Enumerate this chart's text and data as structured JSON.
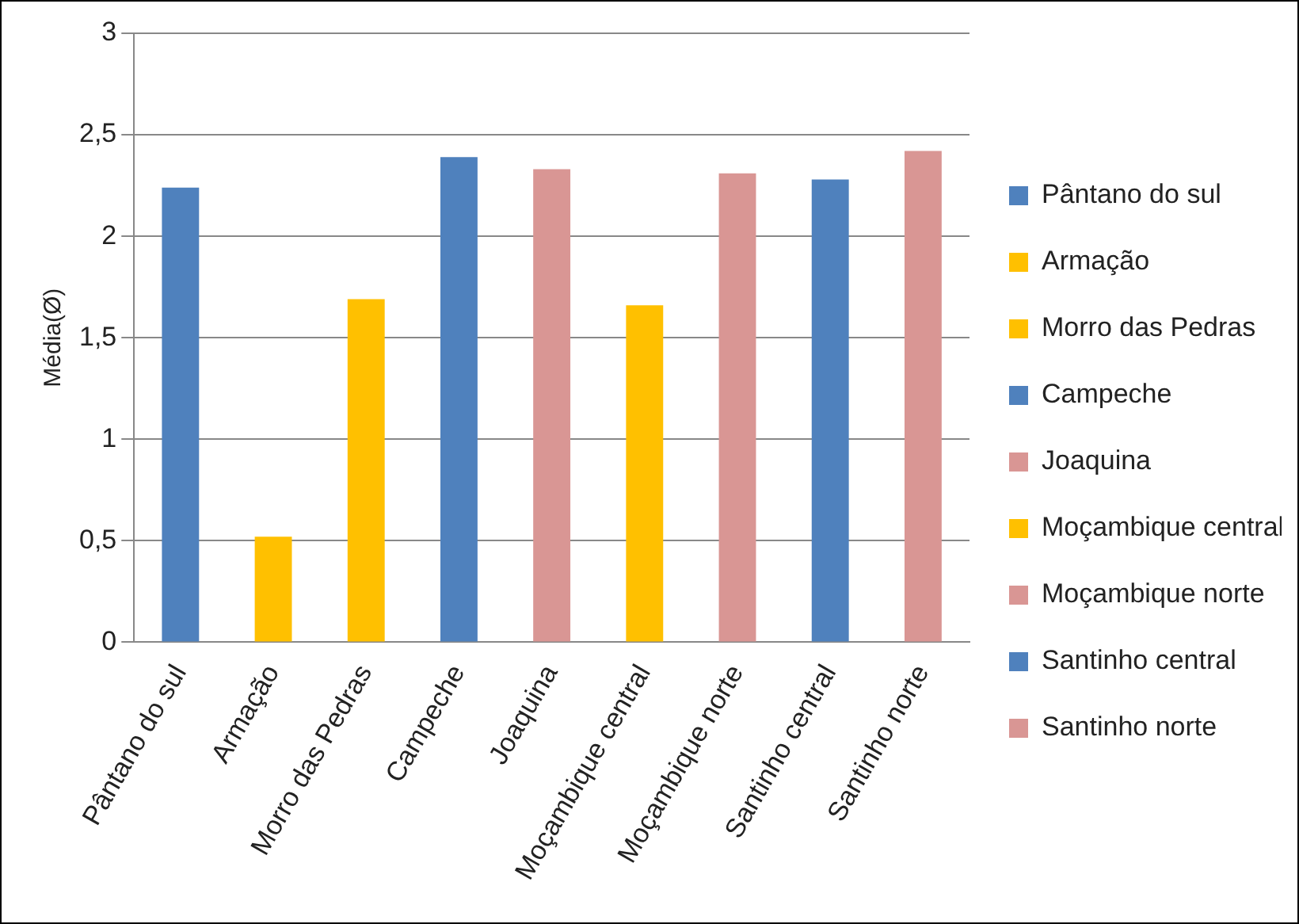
{
  "chart_data": {
    "type": "bar",
    "ylabel": "Média(Ø)",
    "categories": [
      "Pântano do sul",
      "Armação",
      "Morro das Pedras",
      "Campeche",
      "Joaquina",
      "Moçambique central",
      "Moçambique norte",
      "Santinho central",
      "Santinho norte"
    ],
    "series": [
      {
        "name": "Pântano do sul",
        "color": "#4f81bd",
        "values": [
          2.24,
          null,
          null,
          null,
          null,
          null,
          null,
          null,
          null
        ]
      },
      {
        "name": "Armação",
        "color": "#ffc000",
        "values": [
          null,
          0.52,
          null,
          null,
          null,
          null,
          null,
          null,
          null
        ]
      },
      {
        "name": "Morro das Pedras",
        "color": "#ffc000",
        "values": [
          null,
          null,
          1.69,
          null,
          null,
          null,
          null,
          null,
          null
        ]
      },
      {
        "name": "Campeche",
        "color": "#4f81bd",
        "values": [
          null,
          null,
          null,
          2.39,
          null,
          null,
          null,
          null,
          null
        ]
      },
      {
        "name": "Joaquina",
        "color": "#d99694",
        "values": [
          null,
          null,
          null,
          null,
          2.33,
          null,
          null,
          null,
          null
        ]
      },
      {
        "name": "Moçambique central",
        "color": "#ffc000",
        "values": [
          null,
          null,
          null,
          null,
          null,
          1.66,
          null,
          null,
          null
        ]
      },
      {
        "name": "Moçambique norte",
        "color": "#d99694",
        "values": [
          null,
          null,
          null,
          null,
          null,
          null,
          2.31,
          null,
          null
        ]
      },
      {
        "name": "Santinho central",
        "color": "#4f81bd",
        "values": [
          null,
          null,
          null,
          null,
          null,
          null,
          null,
          2.28,
          null
        ]
      },
      {
        "name": "Santinho norte",
        "color": "#d99694",
        "values": [
          null,
          null,
          null,
          null,
          null,
          null,
          null,
          null,
          2.42
        ]
      }
    ],
    "ylim": [
      0,
      3
    ],
    "yticks": [
      0,
      {
        "value": 0.5,
        "label": "0,5"
      },
      1,
      {
        "value": 1.5,
        "label": "1,5"
      },
      2,
      {
        "value": 2.5,
        "label": "2,5"
      },
      3
    ],
    "grid": "y",
    "legend": "right"
  }
}
